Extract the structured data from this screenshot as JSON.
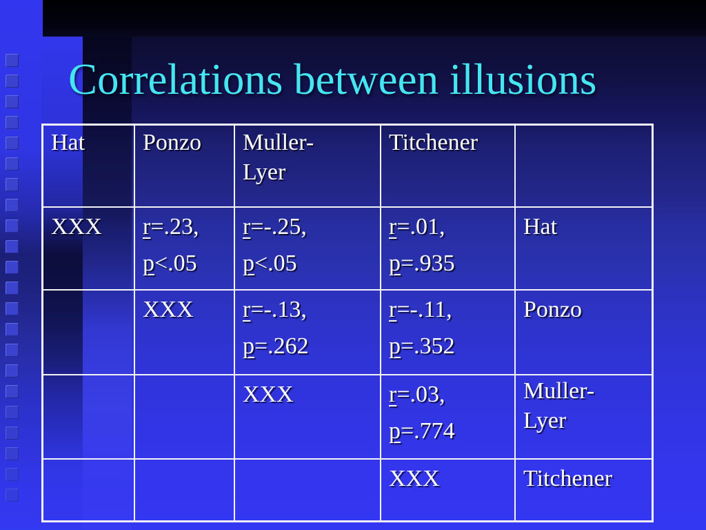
{
  "slide": {
    "title": "Correlations between illusions"
  },
  "colors": {
    "title_accent": "#45E6F2",
    "background_top": "#06061d",
    "background_bottom": "#3437f2",
    "left_strip_blue": "#3237ef",
    "table_border": "#f4f4f6",
    "cell_text": "#ffffff"
  },
  "decor": {
    "square_count": 22
  },
  "table": {
    "header_row": [
      "Hat",
      "Ponzo",
      "Muller-Lyer",
      "Titchener",
      ""
    ],
    "body_rows": [
      {
        "cells": [
          {
            "text": "XXX"
          },
          {
            "r": "r",
            "rv": "=.23,",
            "p": "p",
            "pv": "<.05"
          },
          {
            "r": "r",
            "rv": "=-.25,",
            "p": "p",
            "pv": "<.05"
          },
          {
            "r": "r",
            "rv": "=.01,",
            "p": "p",
            "pv": "=.935"
          },
          {
            "text": "Hat"
          }
        ]
      },
      {
        "cells": [
          {
            "text": ""
          },
          {
            "text": "XXX"
          },
          {
            "r": "r",
            "rv": "=-.13,",
            "p": "p",
            "pv": "=.262"
          },
          {
            "r": "r",
            "rv": "=-.11,",
            "p": "p",
            "pv": "=.352"
          },
          {
            "text": "Ponzo"
          }
        ]
      },
      {
        "cells": [
          {
            "text": ""
          },
          {
            "text": ""
          },
          {
            "text": "XXX"
          },
          {
            "r": "r",
            "rv": "=.03,",
            "p": "p",
            "pv": "=.774"
          },
          {
            "text": "Muller-Lyer"
          }
        ]
      },
      {
        "cells": [
          {
            "text": ""
          },
          {
            "text": ""
          },
          {
            "text": ""
          },
          {
            "text": "XXX"
          },
          {
            "text": "Titchener"
          }
        ]
      }
    ]
  }
}
